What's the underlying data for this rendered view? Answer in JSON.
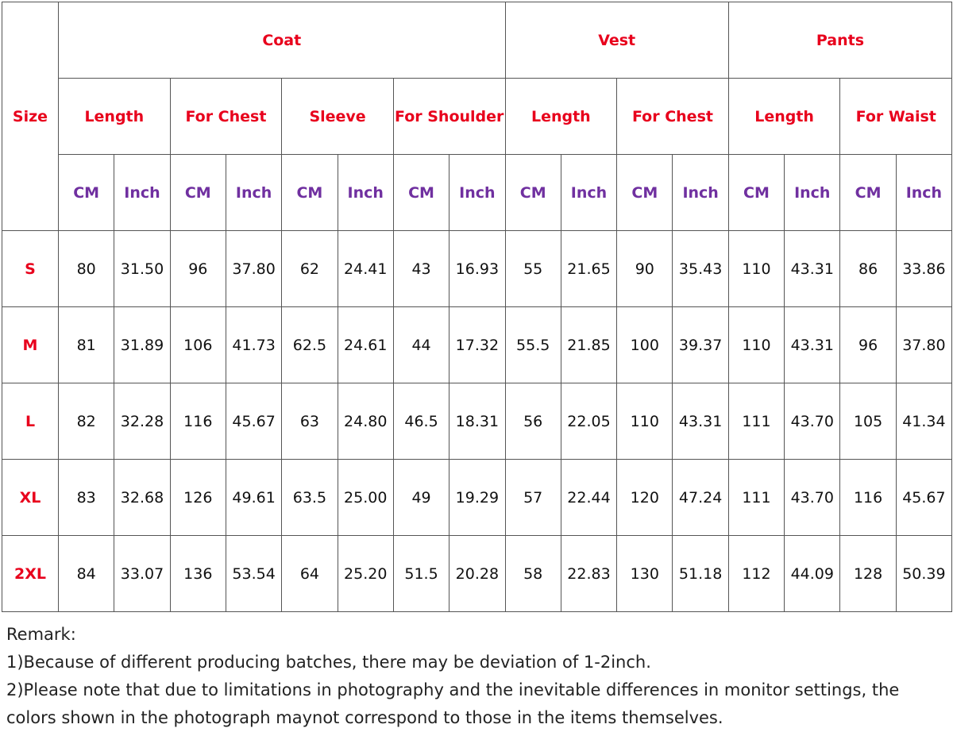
{
  "table": {
    "size_header": "Size",
    "groups": [
      {
        "label": "Coat",
        "columns": [
          {
            "label": "Length",
            "units": [
              "CM",
              "Inch"
            ]
          },
          {
            "label": "For Chest",
            "units": [
              "CM",
              "Inch"
            ]
          },
          {
            "label": "Sleeve",
            "units": [
              "CM",
              "Inch"
            ]
          },
          {
            "label": "For Shoulder",
            "units": [
              "CM",
              "Inch"
            ]
          }
        ]
      },
      {
        "label": "Vest",
        "columns": [
          {
            "label": "Length",
            "units": [
              "CM",
              "Inch"
            ]
          },
          {
            "label": "For Chest",
            "units": [
              "CM",
              "Inch"
            ]
          }
        ]
      },
      {
        "label": "Pants",
        "columns": [
          {
            "label": "Length",
            "units": [
              "CM",
              "Inch"
            ]
          },
          {
            "label": "For Waist",
            "units": [
              "CM",
              "Inch"
            ]
          }
        ]
      }
    ],
    "rows": [
      {
        "size": "S",
        "values": [
          "80",
          "31.50",
          "96",
          "37.80",
          "62",
          "24.41",
          "43",
          "16.93",
          "55",
          "21.65",
          "90",
          "35.43",
          "110",
          "43.31",
          "86",
          "33.86"
        ]
      },
      {
        "size": "M",
        "values": [
          "81",
          "31.89",
          "106",
          "41.73",
          "62.5",
          "24.61",
          "44",
          "17.32",
          "55.5",
          "21.85",
          "100",
          "39.37",
          "110",
          "43.31",
          "96",
          "37.80"
        ]
      },
      {
        "size": "L",
        "values": [
          "82",
          "32.28",
          "116",
          "45.67",
          "63",
          "24.80",
          "46.5",
          "18.31",
          "56",
          "22.05",
          "110",
          "43.31",
          "111",
          "43.70",
          "105",
          "41.34"
        ]
      },
      {
        "size": "XL",
        "values": [
          "83",
          "32.68",
          "126",
          "49.61",
          "63.5",
          "25.00",
          "49",
          "19.29",
          "57",
          "22.44",
          "120",
          "47.24",
          "111",
          "43.70",
          "116",
          "45.67"
        ]
      },
      {
        "size": "2XL",
        "values": [
          "84",
          "33.07",
          "136",
          "53.54",
          "64",
          "25.20",
          "51.5",
          "20.28",
          "58",
          "22.83",
          "130",
          "51.18",
          "112",
          "44.09",
          "128",
          "50.39"
        ]
      }
    ]
  },
  "remarks": {
    "title": "Remark:",
    "lines": [
      "1)Because of different producing batches, there may be deviation of 1-2inch.",
      "2)Please note that due to limitations in photography and the inevitable differences in monitor settings, the colors shown in the photograph maynot correspond to those in the items themselves."
    ]
  }
}
